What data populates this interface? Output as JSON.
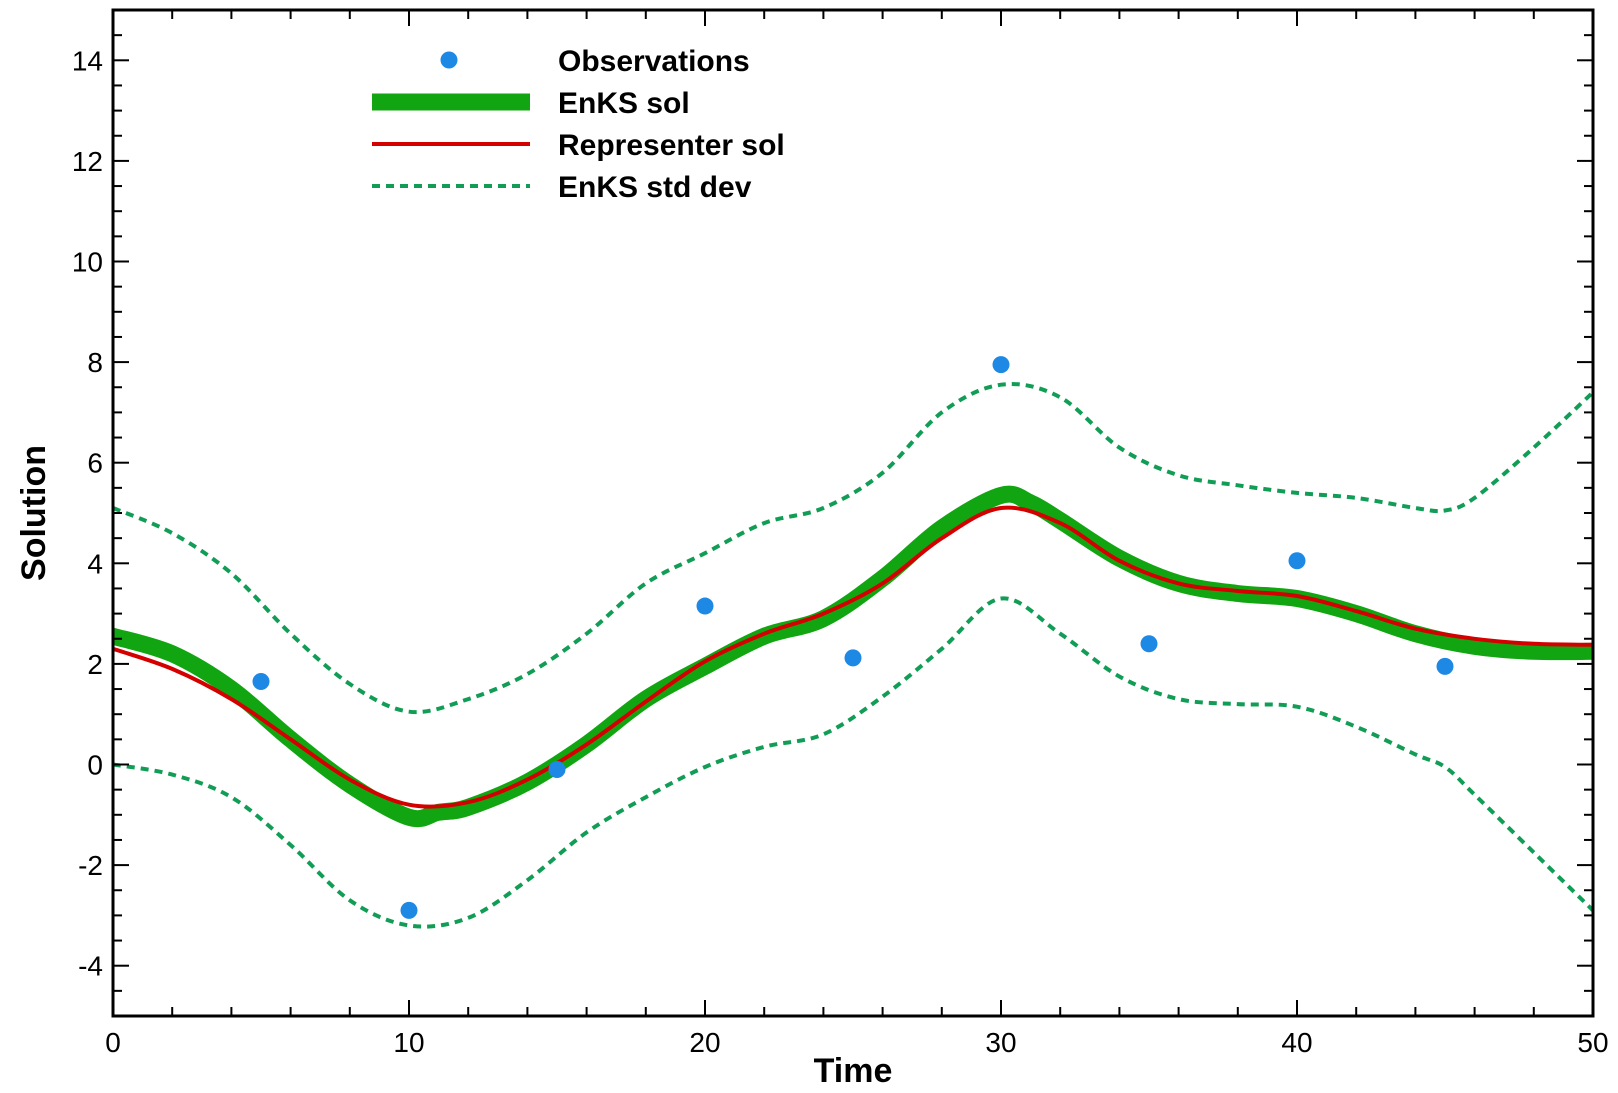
{
  "chart_data": {
    "type": "line",
    "title": "",
    "xlabel": "Time",
    "ylabel": "Solution",
    "xlim": [
      0,
      50
    ],
    "ylim": [
      -5,
      15
    ],
    "xticks": [
      0,
      10,
      20,
      30,
      40,
      50
    ],
    "yticks": [
      -4,
      -2,
      0,
      2,
      4,
      6,
      8,
      10,
      12,
      14
    ],
    "legend_position": "top-left",
    "grid": false,
    "series": [
      {
        "name": "Observations",
        "kind": "scatter",
        "color": "#1e88e5",
        "x": [
          5,
          10,
          15,
          20,
          25,
          30,
          35,
          40,
          45
        ],
        "y": [
          1.65,
          -2.9,
          -0.1,
          3.15,
          2.12,
          7.95,
          2.4,
          4.05,
          1.95
        ]
      },
      {
        "name": "EnKS sol",
        "kind": "line",
        "style": "thick",
        "color": "#11a611",
        "x": [
          0,
          2,
          4,
          6,
          8,
          10,
          11,
          12,
          14,
          16,
          18,
          20,
          22,
          24,
          26,
          28,
          30,
          31,
          32,
          34,
          36,
          38,
          40,
          42,
          44,
          46,
          48,
          50
        ],
        "y": [
          2.55,
          2.2,
          1.5,
          0.5,
          -0.4,
          -1.05,
          -0.95,
          -0.85,
          -0.35,
          0.4,
          1.3,
          1.95,
          2.55,
          2.9,
          3.7,
          4.7,
          5.35,
          5.2,
          4.85,
          4.1,
          3.6,
          3.4,
          3.3,
          3.0,
          2.6,
          2.35,
          2.25,
          2.25
        ]
      },
      {
        "name": "Representer sol",
        "kind": "line",
        "style": "solid",
        "color": "#d40000",
        "x": [
          0,
          2,
          4,
          6,
          8,
          10,
          12,
          14,
          16,
          18,
          20,
          22,
          24,
          26,
          28,
          30,
          32,
          34,
          36,
          38,
          40,
          42,
          44,
          46,
          48,
          50
        ],
        "y": [
          2.3,
          1.9,
          1.3,
          0.5,
          -0.3,
          -0.8,
          -0.75,
          -0.3,
          0.4,
          1.25,
          2.05,
          2.6,
          3.0,
          3.6,
          4.5,
          5.1,
          4.8,
          4.05,
          3.6,
          3.45,
          3.35,
          3.05,
          2.7,
          2.5,
          2.4,
          2.38
        ]
      },
      {
        "name": "EnKS std dev",
        "kind": "line",
        "style": "dotted",
        "color": "#119d55",
        "x": [
          0,
          2,
          4,
          6,
          8,
          10,
          12,
          14,
          16,
          18,
          20,
          22,
          24,
          26,
          28,
          30,
          32,
          34,
          36,
          38,
          40,
          42,
          44,
          45,
          46,
          48,
          50
        ],
        "y": [
          5.1,
          4.6,
          3.8,
          2.6,
          1.6,
          1.05,
          1.3,
          1.8,
          2.6,
          3.6,
          4.2,
          4.8,
          5.1,
          5.8,
          7.0,
          7.55,
          7.3,
          6.3,
          5.75,
          5.55,
          5.4,
          5.3,
          5.1,
          5.05,
          5.3,
          6.3,
          7.4
        ]
      },
      {
        "name": "",
        "kind": "line",
        "style": "dotted",
        "color": "#119d55",
        "x": [
          0,
          2,
          4,
          6,
          8,
          10,
          12,
          14,
          16,
          18,
          20,
          22,
          24,
          26,
          28,
          30,
          32,
          34,
          36,
          38,
          40,
          42,
          44,
          45,
          46,
          48,
          50
        ],
        "y": [
          0.0,
          -0.2,
          -0.65,
          -1.6,
          -2.7,
          -3.2,
          -3.05,
          -2.3,
          -1.35,
          -0.65,
          -0.05,
          0.35,
          0.6,
          1.35,
          2.3,
          3.3,
          2.6,
          1.75,
          1.3,
          1.2,
          1.15,
          0.75,
          0.2,
          -0.05,
          -0.6,
          -1.75,
          -2.9
        ]
      }
    ]
  }
}
